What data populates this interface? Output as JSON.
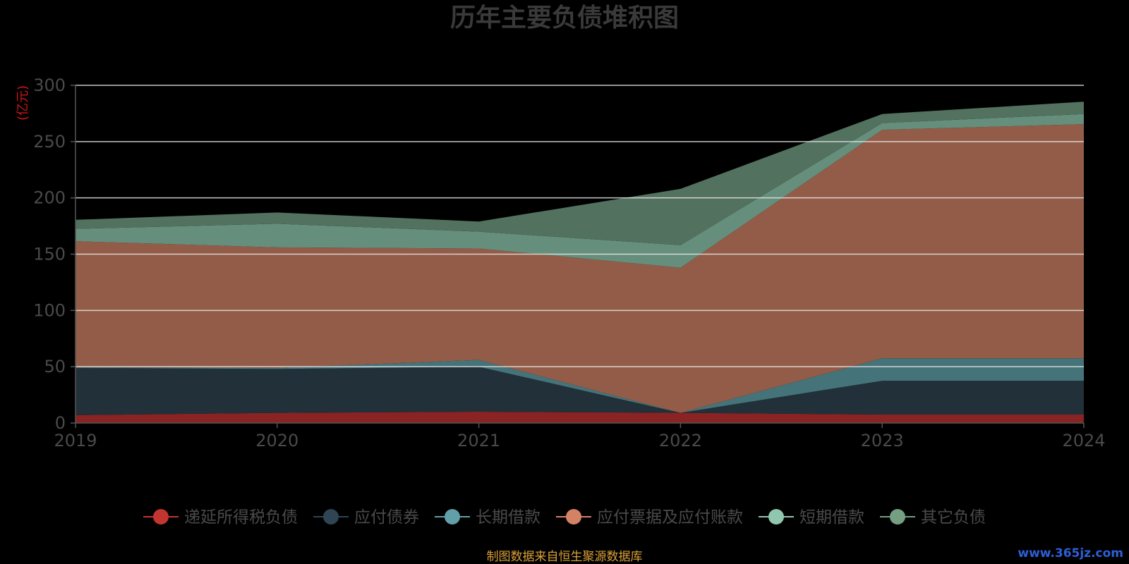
{
  "chart_data": {
    "type": "area",
    "title": "历年主要负债堆积图",
    "ylabel": "(亿元)",
    "x": [
      "2019",
      "2020",
      "2021",
      "2022",
      "2023",
      "2024"
    ],
    "ylim": [
      0,
      300
    ],
    "yticks": [
      "0",
      "50",
      "100",
      "150",
      "200",
      "250",
      "300"
    ],
    "stacked": true,
    "grid": true,
    "legend_position": "bottom",
    "series": [
      {
        "name": "递延所得税负债",
        "color": "#c23531",
        "area_color": "#8a2424",
        "values": [
          7,
          9,
          10,
          9,
          7.5,
          7.5
        ]
      },
      {
        "name": "应付债券",
        "color": "#2f4554",
        "area_color": "#223039",
        "values": [
          42,
          39,
          40,
          0,
          30,
          30
        ]
      },
      {
        "name": "长期借款",
        "color": "#61a0a8",
        "area_color": "#45737a",
        "values": [
          0.5,
          1,
          6,
          0,
          20,
          20
        ]
      },
      {
        "name": "应付票据及应付账款",
        "color": "#d48265",
        "area_color": "#935c48",
        "values": [
          112,
          107,
          99,
          129,
          203,
          208
        ]
      },
      {
        "name": "短期借款",
        "color": "#91c7ae",
        "area_color": "#658f7c",
        "values": [
          11,
          21,
          15,
          20,
          6,
          9
        ]
      },
      {
        "name": "其它负债",
        "color": "#749f83",
        "area_color": "#52715e",
        "values": [
          8,
          10,
          9,
          50,
          8,
          11
        ]
      }
    ]
  },
  "footer": {
    "source": "制图数据来自恒生聚源数据库",
    "watermark": "www.365jz.com"
  }
}
